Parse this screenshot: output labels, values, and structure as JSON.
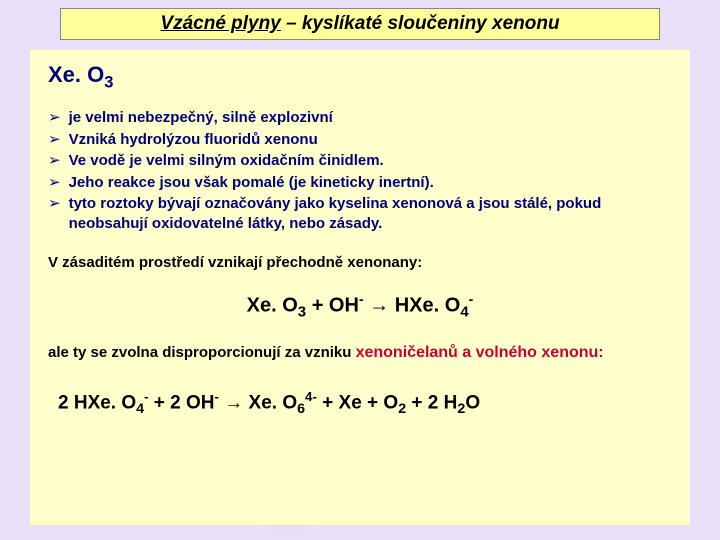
{
  "title": {
    "underlined": "Vzácné plyny",
    "rest": " – kyslíkaté sloučeniny xenonu"
  },
  "heading": {
    "pre": "Xe. O",
    "sub": "3"
  },
  "bullets": [
    "je velmi nebezpečný, silně explozivní",
    "Vzniká hydrolýzou fluoridů xenonu",
    "Ve vodě je velmi silným oxidačním činidlem.",
    "Jeho reakce jsou však pomalé (je kineticky inertní).",
    "tyto roztoky bývají označovány jako kyselina xenonová a jsou stálé, pokud neobsahují oxidovatelné látky, nebo zásady."
  ],
  "para1": "V zásaditém prostředí vznikají přechodně xenonany:",
  "eq1": {
    "p1": "Xe. O",
    "s1": "3",
    "p2": "  + OH",
    "s2": "-",
    "arrow": " → ",
    "p3": "HXe. O",
    "s3": "4",
    "s4": "-"
  },
  "para2a": "ale ty se zvolna disproporcionují za vzniku ",
  "para2b": "xenoničelanů a volného xenonu:",
  "eq2": {
    "t1": "2 HXe. O",
    "s1": "4",
    "s1b": "-",
    "t2": "  +  2 OH",
    "s2": "-",
    "arrow": "  →  ",
    "t3": "Xe. O",
    "s3": "6",
    "s3b": "4-",
    "t4": "  +   Xe   +   O",
    "s4": "2",
    "t5": "  +  2 H",
    "s5": "2",
    "t6": "O"
  }
}
